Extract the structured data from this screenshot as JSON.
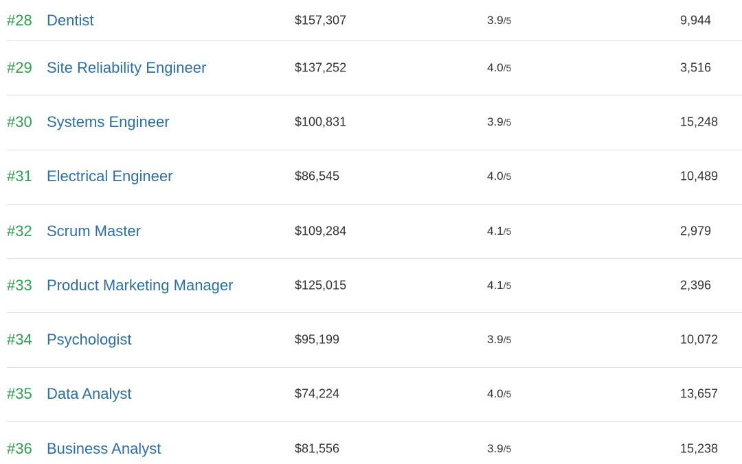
{
  "jobs": [
    {
      "rank": "#28",
      "title": "Dentist",
      "salary": "$157,307",
      "rating": "3.9",
      "rating_scale": "/5",
      "openings": "9,944"
    },
    {
      "rank": "#29",
      "title": "Site Reliability Engineer",
      "salary": "$137,252",
      "rating": "4.0",
      "rating_scale": "/5",
      "openings": "3,516"
    },
    {
      "rank": "#30",
      "title": "Systems Engineer",
      "salary": "$100,831",
      "rating": "3.9",
      "rating_scale": "/5",
      "openings": "15,248"
    },
    {
      "rank": "#31",
      "title": "Electrical Engineer",
      "salary": "$86,545",
      "rating": "4.0",
      "rating_scale": "/5",
      "openings": "10,489"
    },
    {
      "rank": "#32",
      "title": "Scrum Master",
      "salary": "$109,284",
      "rating": "4.1",
      "rating_scale": "/5",
      "openings": "2,979"
    },
    {
      "rank": "#33",
      "title": "Product Marketing Manager",
      "salary": "$125,015",
      "rating": "4.1",
      "rating_scale": "/5",
      "openings": "2,396"
    },
    {
      "rank": "#34",
      "title": "Psychologist",
      "salary": "$95,199",
      "rating": "3.9",
      "rating_scale": "/5",
      "openings": "10,072"
    },
    {
      "rank": "#35",
      "title": "Data Analyst",
      "salary": "$74,224",
      "rating": "4.0",
      "rating_scale": "/5",
      "openings": "13,657"
    },
    {
      "rank": "#36",
      "title": "Business Analyst",
      "salary": "$81,556",
      "rating": "3.9",
      "rating_scale": "/5",
      "openings": "15,238"
    }
  ],
  "colors": {
    "rank": "#2e9e4f",
    "title_link": "#2c6fa6",
    "text": "#333333",
    "divider": "#dcdcdc"
  }
}
